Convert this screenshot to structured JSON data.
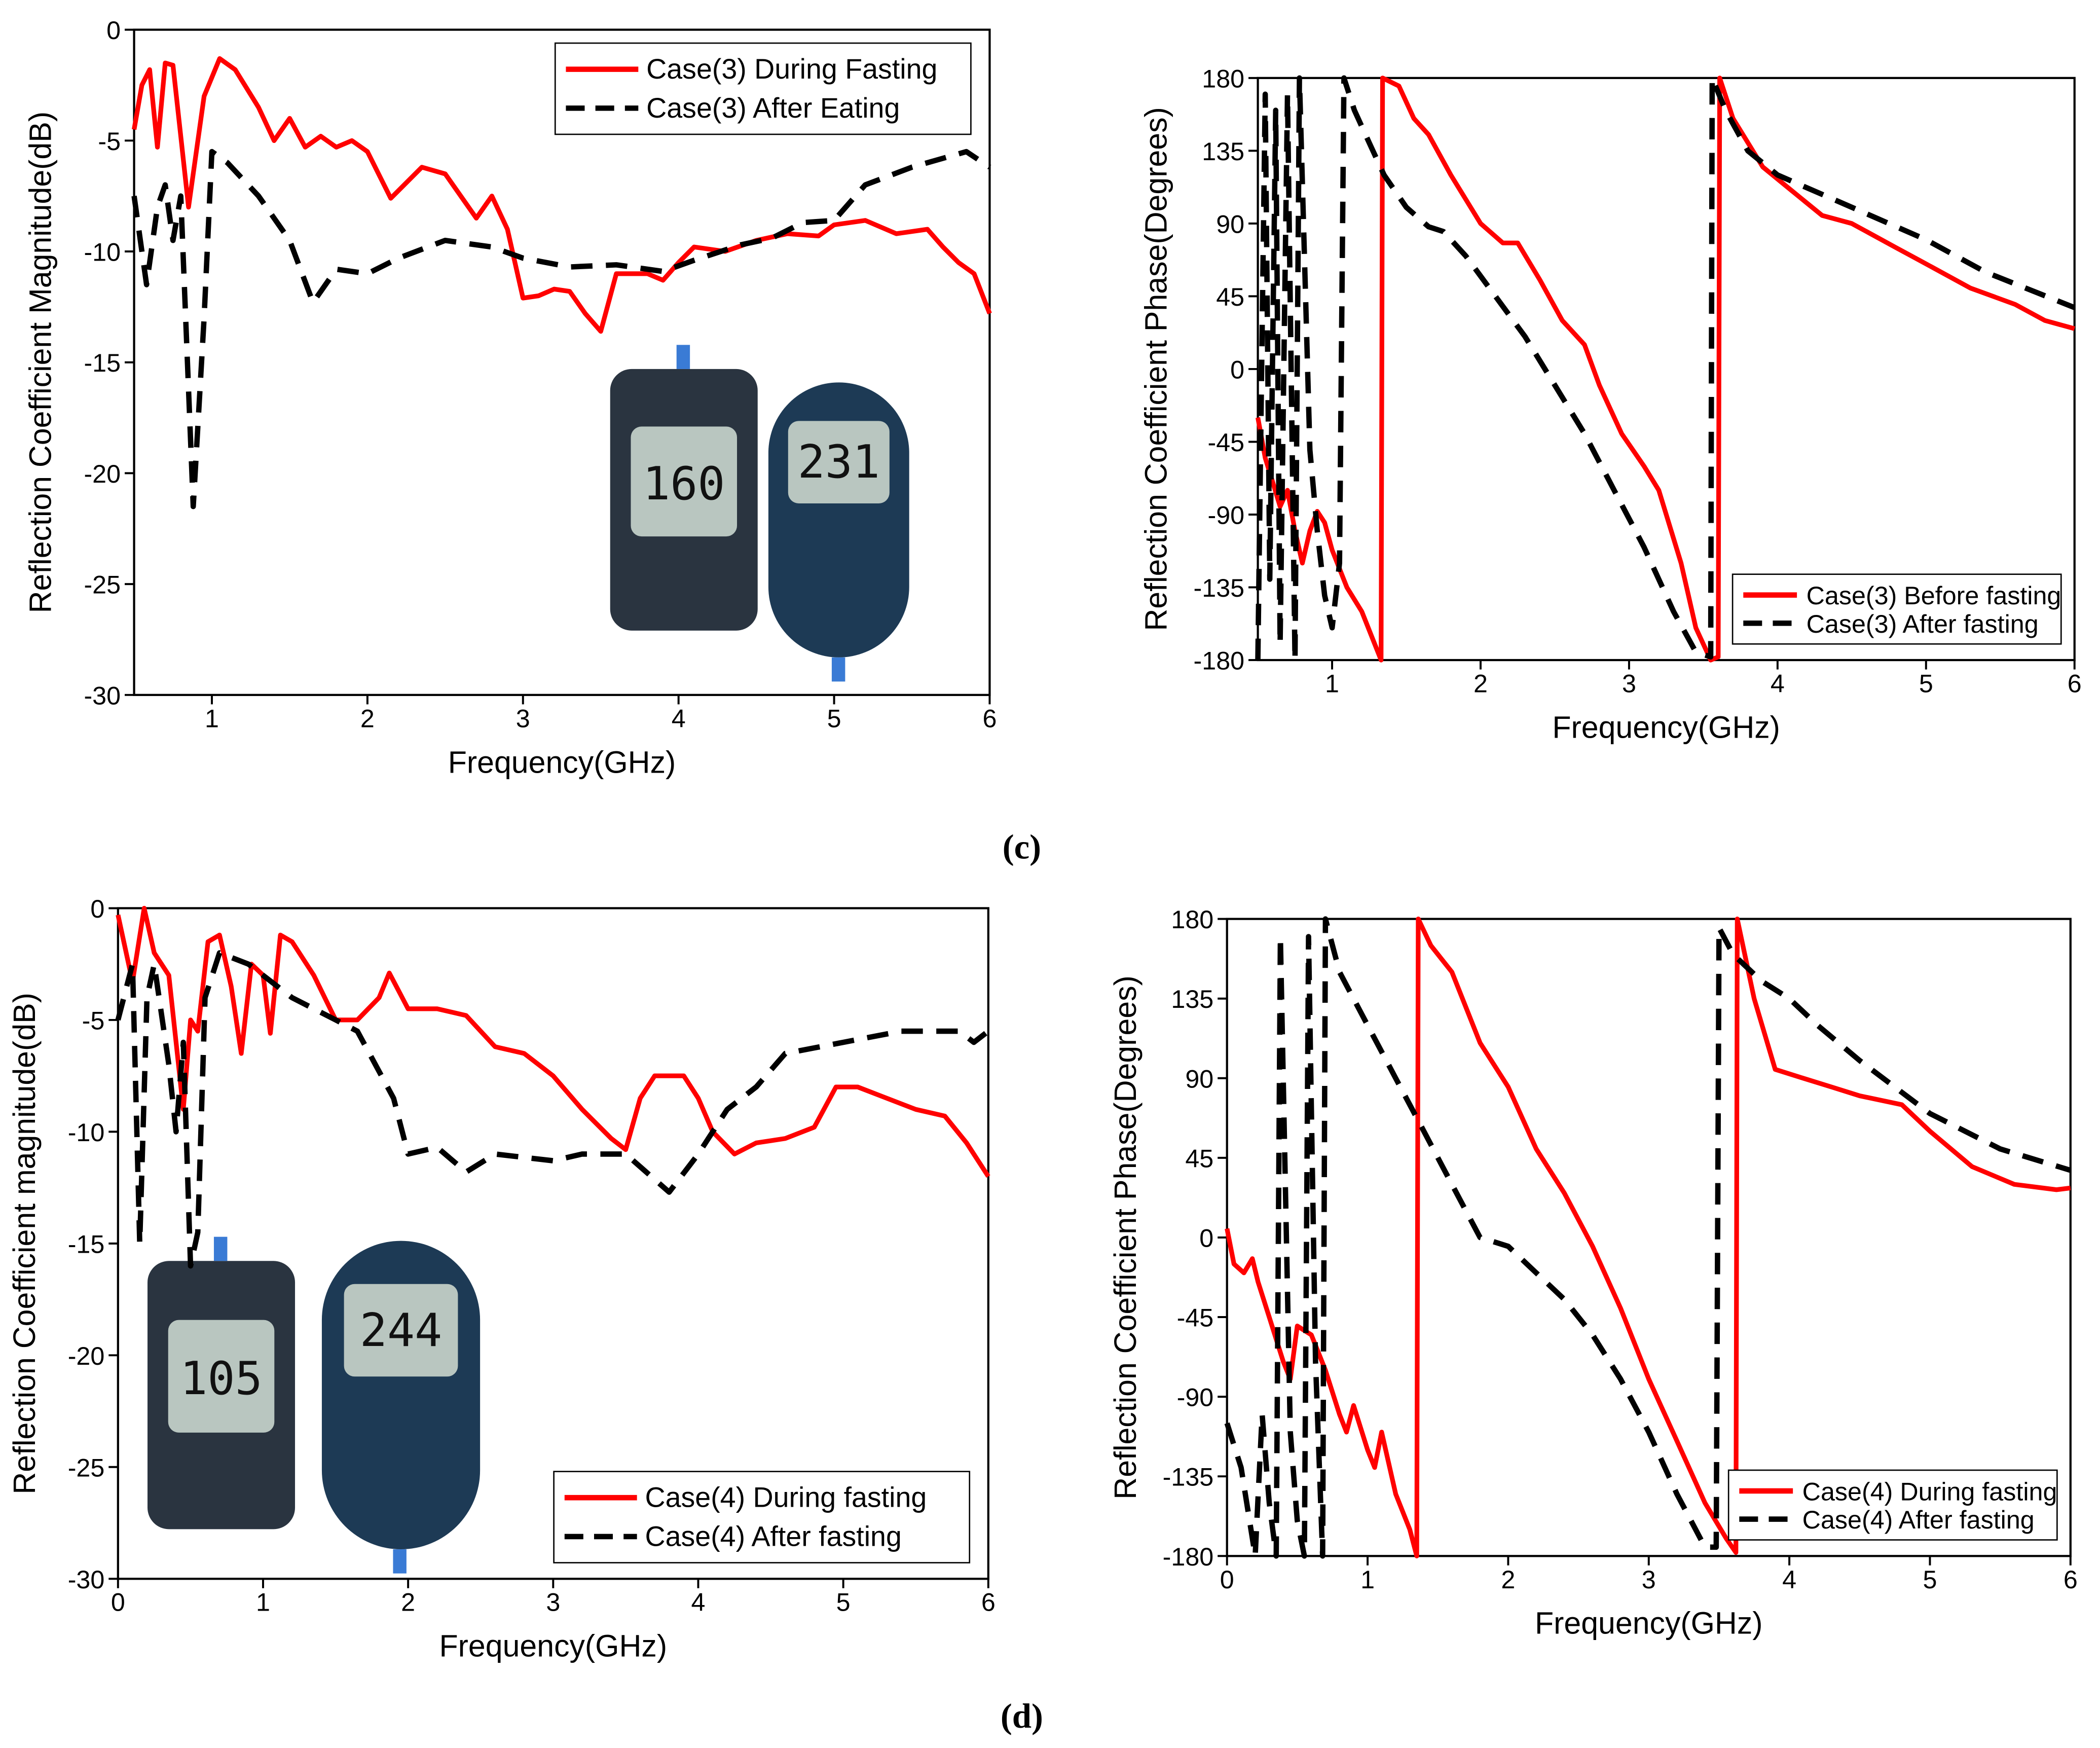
{
  "chart_data": [
    {
      "type": "line",
      "x_label": "Frequency(GHz)",
      "y_label": "Reflection Coefficient Magnitude(dB)",
      "xlim": [
        0.5,
        6
      ],
      "ylim": [
        -30,
        0
      ],
      "xticks": [
        1,
        2,
        3,
        4,
        5,
        6
      ],
      "yticks": [
        -30,
        -25,
        -20,
        -15,
        -10,
        -5,
        0
      ],
      "legend": "upper right",
      "annotations": [
        "160",
        "231"
      ],
      "series": [
        {
          "name": "Case(3) During Fasting",
          "color": "#ff0000",
          "style": "solid",
          "x": [
            0.5,
            0.55,
            0.6,
            0.65,
            0.7,
            0.75,
            0.85,
            0.95,
            1.05,
            1.15,
            1.3,
            1.4,
            1.5,
            1.6,
            1.7,
            1.8,
            1.9,
            2,
            2.15,
            2.35,
            2.5,
            2.7,
            2.8,
            2.9,
            3,
            3.1,
            3.2,
            3.3,
            3.4,
            3.5,
            3.6,
            3.8,
            3.9,
            4,
            4.1,
            4.3,
            4.5,
            4.7,
            4.9,
            5,
            5.2,
            5.4,
            5.6,
            5.7,
            5.8,
            5.9,
            6
          ],
          "values": [
            -4.5,
            -2.5,
            -1.8,
            -5.3,
            -1.5,
            -1.6,
            -8,
            -3,
            -1.3,
            -1.8,
            -3.5,
            -5,
            -4,
            -5.3,
            -4.8,
            -5.3,
            -5,
            -5.5,
            -7.6,
            -6.2,
            -6.5,
            -8.5,
            -7.5,
            -9,
            -12.1,
            -12,
            -11.7,
            -11.8,
            -12.8,
            -13.6,
            -11,
            -11,
            -11.3,
            -10.5,
            -9.8,
            -10,
            -9.5,
            -9.2,
            -9.3,
            -8.8,
            -8.6,
            -9.2,
            -9,
            -9.8,
            -10.5,
            -11,
            -12.8
          ]
        },
        {
          "name": "Case(3) After Eating",
          "color": "#000000",
          "style": "dashed",
          "x": [
            0.5,
            0.58,
            0.65,
            0.7,
            0.75,
            0.8,
            0.88,
            0.95,
            1,
            1.1,
            1.3,
            1.5,
            1.65,
            1.8,
            2,
            2.2,
            2.5,
            2.8,
            3,
            3.3,
            3.6,
            3.9,
            4.1,
            4.4,
            4.6,
            4.8,
            5,
            5.2,
            5.5,
            5.85,
            6
          ],
          "values": [
            -7.5,
            -11.5,
            -8,
            -7,
            -9.5,
            -7.5,
            -21.5,
            -13,
            -5.5,
            -6,
            -7.5,
            -9.5,
            -12.3,
            -10.8,
            -11,
            -10.3,
            -9.5,
            -9.8,
            -10.3,
            -10.7,
            -10.6,
            -10.9,
            -10.4,
            -9.7,
            -9.4,
            -8.7,
            -8.6,
            -7,
            -6.2,
            -5.5,
            -6.2
          ]
        }
      ]
    },
    {
      "type": "line",
      "x_label": "Frequency(GHz)",
      "y_label": "Reflection Coefficient Phase(Degrees)",
      "xlim": [
        0.5,
        6
      ],
      "ylim": [
        -180,
        180
      ],
      "xticks": [
        1,
        2,
        3,
        4,
        5,
        6
      ],
      "yticks": [
        -180,
        -135,
        -90,
        -45,
        0,
        45,
        90,
        135,
        180
      ],
      "legend": "lower right",
      "annotations": [],
      "series": [
        {
          "name": "Case(3) Before fasting",
          "color": "#ff0000",
          "style": "solid",
          "x": [
            0.5,
            0.55,
            0.6,
            0.65,
            0.7,
            0.75,
            0.8,
            0.85,
            0.9,
            0.95,
            1,
            1.1,
            1.2,
            1.33,
            1.34,
            1.45,
            1.55,
            1.65,
            1.8,
            1.9,
            2,
            2.15,
            2.25,
            2.4,
            2.55,
            2.7,
            2.8,
            2.95,
            3.1,
            3.2,
            3.35,
            3.45,
            3.55,
            3.6,
            3.61,
            3.7,
            3.9,
            4.1,
            4.3,
            4.5,
            4.8,
            5,
            5.3,
            5.6,
            5.8,
            6
          ],
          "values": [
            -30,
            -55,
            -70,
            -85,
            -75,
            -100,
            -120,
            -100,
            -88,
            -95,
            -112,
            -135,
            -150,
            -180,
            180,
            175,
            155,
            145,
            120,
            105,
            90,
            78,
            78,
            55,
            30,
            15,
            -10,
            -40,
            -60,
            -75,
            -120,
            -160,
            -180,
            -178,
            180,
            155,
            125,
            110,
            95,
            90,
            75,
            65,
            50,
            40,
            30,
            25
          ]
        },
        {
          "name": "Case(3) After fasting",
          "color": "#000000",
          "style": "dashed",
          "x": [
            0.5,
            0.55,
            0.58,
            0.62,
            0.65,
            0.7,
            0.75,
            0.78,
            0.85,
            0.9,
            0.95,
            1,
            1.05,
            1.08,
            1.15,
            1.25,
            1.35,
            1.5,
            1.65,
            1.75,
            1.9,
            2.1,
            2.3,
            2.5,
            2.7,
            2.9,
            3.1,
            3.3,
            3.45,
            3.55,
            3.56,
            3.65,
            3.8,
            4,
            4.5,
            5,
            5.4,
            6
          ],
          "values": [
            -180,
            170,
            -130,
            160,
            -170,
            170,
            -180,
            180,
            -50,
            -100,
            -140,
            -160,
            -120,
            180,
            160,
            140,
            120,
            100,
            88,
            85,
            70,
            45,
            20,
            -10,
            -40,
            -75,
            -110,
            -150,
            -175,
            -178,
            180,
            160,
            135,
            120,
            100,
            80,
            60,
            38
          ]
        }
      ]
    },
    {
      "type": "line",
      "x_label": "Frequency(GHz)",
      "y_label": "Reflection Coefficient magnitude(dB)",
      "xlim": [
        0,
        6
      ],
      "ylim": [
        -30,
        0
      ],
      "xticks": [
        0,
        1,
        2,
        3,
        4,
        5,
        6
      ],
      "yticks": [
        -30,
        -25,
        -20,
        -15,
        -10,
        -5,
        0
      ],
      "legend": "lower right",
      "annotations": [
        "105",
        "244"
      ],
      "series": [
        {
          "name": "Case(4) During fasting",
          "color": "#ff0000",
          "style": "solid",
          "x": [
            0,
            0.1,
            0.18,
            0.25,
            0.35,
            0.45,
            0.5,
            0.55,
            0.62,
            0.7,
            0.78,
            0.85,
            0.92,
            1,
            1.05,
            1.12,
            1.2,
            1.35,
            1.5,
            1.65,
            1.8,
            1.87,
            2,
            2.2,
            2.4,
            2.6,
            2.8,
            3,
            3.2,
            3.4,
            3.5,
            3.6,
            3.7,
            3.9,
            4,
            4.1,
            4.25,
            4.4,
            4.6,
            4.8,
            4.95,
            5.1,
            5.3,
            5.5,
            5.7,
            5.85,
            6
          ],
          "values": [
            -0.3,
            -3.3,
            0,
            -2,
            -3,
            -9,
            -5,
            -5.5,
            -1.5,
            -1.2,
            -3.5,
            -6.5,
            -2.5,
            -3,
            -5.6,
            -1.2,
            -1.5,
            -3,
            -5,
            -5,
            -4,
            -2.9,
            -4.5,
            -4.5,
            -4.8,
            -6.2,
            -6.5,
            -7.5,
            -9,
            -10.3,
            -10.8,
            -8.5,
            -7.5,
            -7.5,
            -8.5,
            -10,
            -11,
            -10.5,
            -10.3,
            -9.8,
            -8,
            -8,
            -8.5,
            -9,
            -9.3,
            -10.5,
            -12
          ]
        },
        {
          "name": "Case(4) After fasting",
          "color": "#000000",
          "style": "dashed",
          "x": [
            0,
            0.1,
            0.15,
            0.2,
            0.25,
            0.35,
            0.4,
            0.45,
            0.5,
            0.55,
            0.6,
            0.7,
            0.9,
            1.2,
            1.5,
            1.65,
            1.9,
            2,
            2.2,
            2.4,
            2.6,
            3,
            3.2,
            3.5,
            3.8,
            4,
            4.2,
            4.4,
            4.6,
            5,
            5.4,
            5.8,
            5.9,
            6
          ],
          "values": [
            -5,
            -2.5,
            -15,
            -4,
            -2.5,
            -7,
            -10,
            -6,
            -16,
            -14.5,
            -4,
            -2,
            -2.5,
            -4,
            -5,
            -5.5,
            -8.5,
            -11,
            -10.7,
            -11.8,
            -11,
            -11.3,
            -11,
            -11,
            -12.7,
            -11,
            -9,
            -8,
            -6.5,
            -6,
            -5.5,
            -5.5,
            -6,
            -5.5
          ]
        }
      ]
    },
    {
      "type": "line",
      "x_label": "Frequency(GHz)",
      "y_label": "Reflection Coefficient Phase(Degrees)",
      "xlim": [
        0,
        6
      ],
      "ylim": [
        -180,
        180
      ],
      "xticks": [
        0,
        1,
        2,
        3,
        4,
        5,
        6
      ],
      "yticks": [
        -180,
        -135,
        -90,
        -45,
        0,
        45,
        90,
        135,
        180
      ],
      "legend": "lower right",
      "annotations": [],
      "series": [
        {
          "name": "Case(4) During fasting",
          "color": "#ff0000",
          "style": "solid",
          "x": [
            0,
            0.05,
            0.12,
            0.18,
            0.22,
            0.3,
            0.4,
            0.45,
            0.5,
            0.6,
            0.7,
            0.8,
            0.85,
            0.9,
            1,
            1.05,
            1.1,
            1.2,
            1.3,
            1.35,
            1.36,
            1.45,
            1.6,
            1.8,
            2,
            2.2,
            2.4,
            2.6,
            2.8,
            3,
            3.2,
            3.4,
            3.55,
            3.62,
            3.63,
            3.75,
            3.9,
            4.1,
            4.3,
            4.5,
            4.8,
            5,
            5.3,
            5.6,
            5.9,
            6
          ],
          "values": [
            5,
            -15,
            -20,
            -12,
            -25,
            -45,
            -70,
            -80,
            -50,
            -55,
            -75,
            -100,
            -110,
            -95,
            -120,
            -130,
            -110,
            -145,
            -165,
            -180,
            180,
            165,
            150,
            110,
            85,
            50,
            25,
            -5,
            -40,
            -80,
            -115,
            -150,
            -170,
            -178,
            180,
            135,
            95,
            90,
            85,
            80,
            75,
            60,
            40,
            30,
            27,
            28
          ]
        },
        {
          "name": "Case(4) After fasting",
          "color": "#000000",
          "style": "dashed",
          "x": [
            0,
            0.1,
            0.2,
            0.25,
            0.3,
            0.35,
            0.38,
            0.45,
            0.5,
            0.55,
            0.58,
            0.63,
            0.68,
            0.7,
            0.8,
            1,
            1.2,
            1.4,
            1.6,
            1.8,
            2,
            2.2,
            2.4,
            2.6,
            2.8,
            3,
            3.2,
            3.4,
            3.48,
            3.5,
            3.6,
            3.8,
            4,
            4.2,
            4.5,
            5,
            5.5,
            6
          ],
          "values": [
            -105,
            -130,
            -180,
            -100,
            -150,
            -180,
            170,
            -110,
            -160,
            -180,
            170,
            -70,
            -180,
            180,
            150,
            120,
            90,
            60,
            30,
            0,
            -5,
            -20,
            -35,
            -55,
            -80,
            -110,
            -145,
            -175,
            -175,
            175,
            160,
            145,
            135,
            120,
            100,
            70,
            50,
            38
          ]
        }
      ]
    }
  ],
  "captions": [
    "(c)",
    "(d)"
  ]
}
